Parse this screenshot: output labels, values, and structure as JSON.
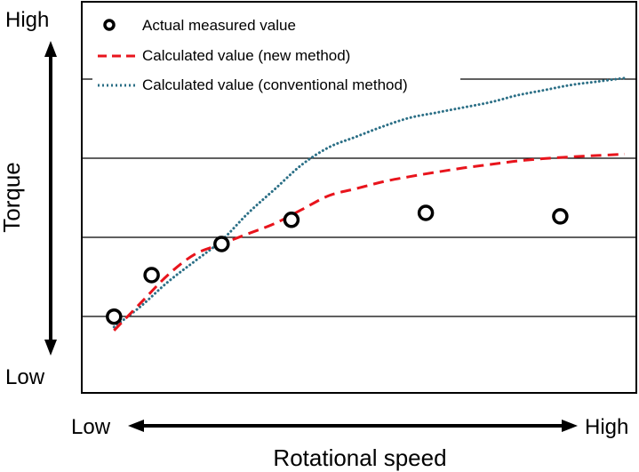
{
  "chart_data": {
    "type": "line",
    "xlabel": "Rotational speed",
    "ylabel": "Torque",
    "x_low_label": "Low",
    "x_high_label": "High",
    "y_low_label": "Low",
    "y_high_label": "High",
    "xlim": [
      0,
      100
    ],
    "ylim": [
      0,
      100
    ],
    "grid": "horizontal",
    "legend_position": "top-left",
    "series": [
      {
        "name": "Actual measured value",
        "kind": "scatter",
        "marker": "open-circle",
        "color": "#000000",
        "x": [
          5,
          12,
          25,
          38,
          63,
          88
        ],
        "y": [
          20,
          32,
          41,
          48,
          50,
          49
        ]
      },
      {
        "name": "Calculated value (new method)",
        "kind": "line",
        "style": "dashed",
        "color": "#e8141c",
        "x": [
          5,
          10,
          15,
          20,
          25,
          30,
          35,
          40,
          45,
          50,
          55,
          60,
          65,
          70,
          75,
          80,
          85,
          90,
          95,
          100
        ],
        "y": [
          16,
          24,
          32,
          38,
          41,
          44,
          47,
          51,
          55,
          57,
          59,
          60.5,
          61.8,
          63,
          64,
          65,
          65.7,
          66.2,
          66.6,
          67
        ]
      },
      {
        "name": "Calculated value (conventional method)",
        "kind": "line",
        "style": "dotted",
        "color": "#2b6f86",
        "x": [
          5,
          10,
          15,
          20,
          25,
          30,
          35,
          40,
          45,
          50,
          55,
          60,
          65,
          70,
          75,
          80,
          85,
          90,
          95,
          100
        ],
        "y": [
          17,
          23,
          30,
          36,
          42,
          50,
          57,
          64,
          69,
          72,
          75,
          77.5,
          79,
          80.5,
          82,
          84,
          85.5,
          87,
          88,
          89
        ]
      }
    ]
  }
}
